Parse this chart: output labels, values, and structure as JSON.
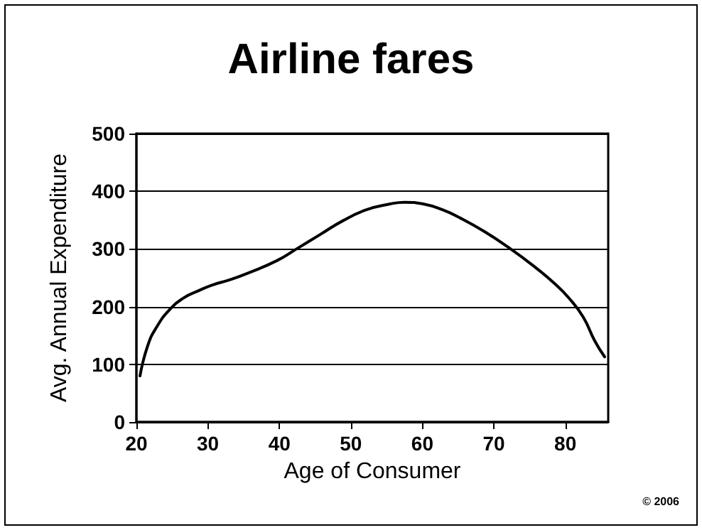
{
  "chart_data": {
    "type": "line",
    "title": "Airline fares",
    "xlabel": "Age of Consumer",
    "ylabel": "Avg. Annual Expenditure",
    "x": [
      20.5,
      21.6,
      22.9,
      24.6,
      26.6,
      28.6,
      30.5,
      33.2,
      35.8,
      39.7,
      42.4,
      45.7,
      48.9,
      52.2,
      55.5,
      57.5,
      60.1,
      62.8,
      65.4,
      68.7,
      72,
      75.3,
      78.6,
      80.5,
      82.5,
      84.1,
      85.5
    ],
    "values": [
      80,
      133,
      166,
      194,
      215,
      227,
      237,
      247,
      259,
      280,
      300,
      325,
      349,
      368,
      378,
      381,
      378,
      368,
      353,
      330,
      303,
      273,
      239,
      215,
      182,
      141,
      113
    ],
    "color": "#000000",
    "xlim": [
      20,
      86
    ],
    "xticks": [
      20,
      30,
      40,
      50,
      60,
      70,
      80
    ],
    "ylim": [
      0,
      500
    ],
    "yticks": [
      0,
      100,
      200,
      300,
      400,
      500
    ],
    "grid": "y",
    "marker": "none",
    "line_style": "solid",
    "annotations": [
      "© 2006"
    ]
  }
}
